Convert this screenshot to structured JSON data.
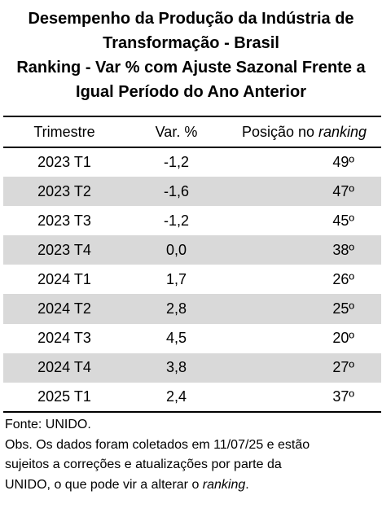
{
  "title": {
    "line1": "Desempenho da Produção da Indústria de",
    "line2": "Transformação - Brasil",
    "line3": "Ranking - Var % com Ajuste Sazonal Frente a",
    "line4": "Igual Período do Ano Anterior"
  },
  "table": {
    "headers": {
      "trimestre": "Trimestre",
      "var": "Var. %",
      "pos_prefix": "Posição no ",
      "pos_italic": "ranking"
    },
    "rows": [
      {
        "trimestre": "2023 T1",
        "var": "-1,2",
        "pos": "49º",
        "shaded": false
      },
      {
        "trimestre": "2023 T2",
        "var": "-1,6",
        "pos": "47º",
        "shaded": true
      },
      {
        "trimestre": "2023 T3",
        "var": "-1,2",
        "pos": "45º",
        "shaded": false
      },
      {
        "trimestre": "2023 T4",
        "var": "0,0",
        "pos": "38º",
        "shaded": true
      },
      {
        "trimestre": "2024 T1",
        "var": "1,7",
        "pos": "26º",
        "shaded": false
      },
      {
        "trimestre": "2024 T2",
        "var": "2,8",
        "pos": "25º",
        "shaded": true
      },
      {
        "trimestre": "2024 T3",
        "var": "4,5",
        "pos": "20º",
        "shaded": false
      },
      {
        "trimestre": "2024 T4",
        "var": "3,8",
        "pos": "27º",
        "shaded": true
      },
      {
        "trimestre": "2025 T1",
        "var": "2,4",
        "pos": "37º",
        "shaded": false
      }
    ]
  },
  "notes": {
    "source": "Fonte: UNIDO.",
    "obs_line1": "Obs. Os dados foram coletados em 11/07/25 e estão",
    "obs_line2": "sujeitos a correções e atualizações por parte da",
    "obs_line3_prefix": "UNIDO, o que pode vir a alterar o ",
    "obs_line3_italic": "ranking",
    "obs_line3_suffix": "."
  },
  "colors": {
    "shaded_row": "#d9d9d9",
    "text": "#000000",
    "background": "#ffffff"
  }
}
